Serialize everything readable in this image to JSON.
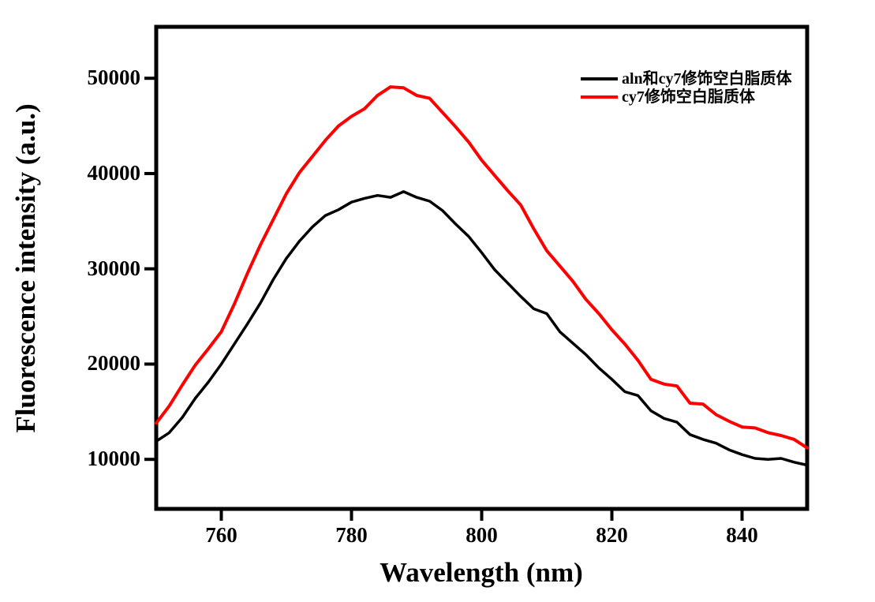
{
  "chart_data": {
    "type": "line",
    "title": "",
    "xlabel": "Wavelength (nm)",
    "ylabel": "Fluorescence intensity (a.u.)",
    "xlim": [
      750,
      850
    ],
    "ylim": [
      4800,
      55400
    ],
    "x_ticks": [
      760,
      780,
      800,
      820,
      840
    ],
    "x_tick_labels": [
      "760",
      "780",
      "800",
      "820",
      "840"
    ],
    "y_ticks": [
      10000,
      20000,
      30000,
      40000,
      50000
    ],
    "y_tick_labels": [
      "10000",
      "20000",
      "30000",
      "40000",
      "50000"
    ],
    "grid": false,
    "legend_position": "upper right",
    "axis_color": "#000000",
    "x": [
      750,
      752,
      754,
      756,
      758,
      760,
      762,
      764,
      766,
      768,
      770,
      772,
      774,
      776,
      778,
      780,
      782,
      784,
      786,
      788,
      790,
      792,
      794,
      796,
      798,
      800,
      802,
      804,
      806,
      808,
      810,
      812,
      814,
      816,
      818,
      820,
      822,
      824,
      826,
      828,
      830,
      832,
      834,
      836,
      838,
      840,
      842,
      844,
      846,
      848,
      850
    ],
    "series": [
      {
        "name": "aln和cy7修饰空白脂质体",
        "color": "#000000",
        "line_width": 3.5,
        "values": [
          11900,
          12800,
          14400,
          16400,
          18100,
          20000,
          22100,
          24200,
          26400,
          28900,
          31100,
          32900,
          34400,
          35600,
          36200,
          37000,
          37400,
          37700,
          37500,
          38100,
          37500,
          37100,
          36100,
          34700,
          33400,
          31700,
          29900,
          28500,
          27100,
          25800,
          25300,
          23400,
          22200,
          21000,
          19600,
          18400,
          17100,
          16700,
          15100,
          14300,
          13900,
          12600,
          12100,
          11700,
          11000,
          10500,
          10100,
          10000,
          10100,
          9700,
          9400
        ]
      },
      {
        "name": "cy7修饰空白脂质体",
        "color": "#ff0000",
        "line_width": 4,
        "values": [
          13800,
          15600,
          17800,
          19900,
          21600,
          23400,
          26300,
          29500,
          32500,
          35200,
          37900,
          40100,
          41800,
          43500,
          45000,
          46000,
          46800,
          48200,
          49100,
          49000,
          48200,
          47900,
          46400,
          44900,
          43300,
          41400,
          39800,
          38200,
          36700,
          34200,
          31900,
          30300,
          28700,
          26800,
          25300,
          23600,
          22100,
          20400,
          18400,
          17900,
          17700,
          15900,
          15800,
          14700,
          14000,
          13400,
          13300,
          12800,
          12500,
          12100,
          11200
        ]
      }
    ]
  }
}
